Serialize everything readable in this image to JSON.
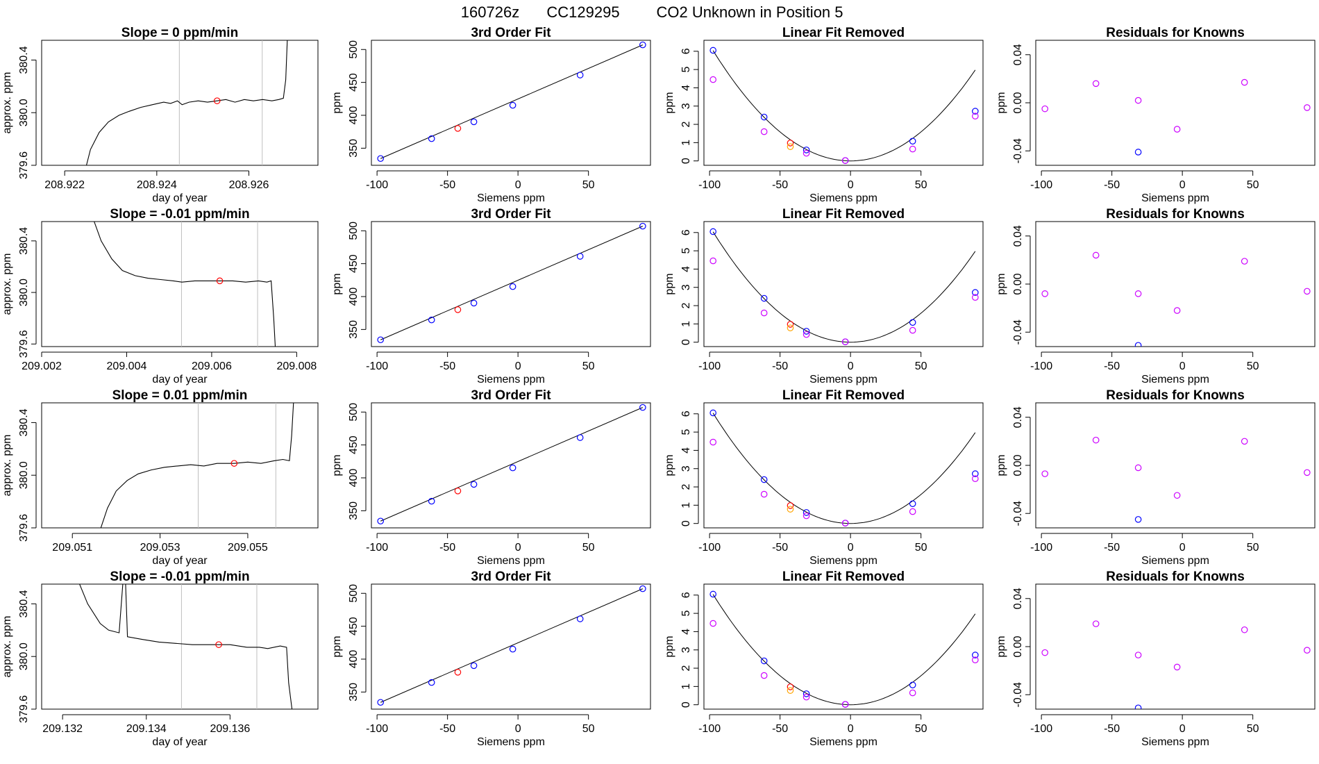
{
  "suptitle": {
    "run": "160726z",
    "cylinder": "CC129295",
    "description": "CO2 Unknown in Position  5"
  },
  "colors": {
    "trace": "#000000",
    "marker_selected": "#ff0000",
    "standards": "#0000ff",
    "linear_removed": "#cc00ff",
    "unknown": "#ffa500",
    "window_lines": "#bebebe"
  },
  "chart_data": [
    {
      "type": "line",
      "title": "Slope =  0  ppm/min",
      "xlabel": "day of year",
      "ylabel": "approx. ppm",
      "xlim": [
        208.9215,
        208.9275
      ],
      "ylim": [
        379.6,
        380.55
      ],
      "xticks": [
        208.922,
        208.924,
        208.926
      ],
      "xticklabels": [
        "208.922",
        "208.924",
        "208.926"
      ],
      "yticks": [
        379.6,
        380.0,
        380.4
      ],
      "yticklabels": [
        "379.6",
        "380.0",
        "380.4"
      ],
      "window": [
        208.92449,
        208.92629
      ],
      "marker": {
        "x": 208.92531,
        "y": 380.09
      },
      "trace": [
        [
          208.9224,
          379.5
        ],
        [
          208.92256,
          379.72
        ],
        [
          208.92275,
          379.85
        ],
        [
          208.92295,
          379.93
        ],
        [
          208.92318,
          379.98
        ],
        [
          208.9234,
          380.01
        ],
        [
          208.92365,
          380.04
        ],
        [
          208.9239,
          380.06
        ],
        [
          208.92415,
          380.08
        ],
        [
          208.9243,
          380.07
        ],
        [
          208.92445,
          380.09
        ],
        [
          208.92455,
          380.06
        ],
        [
          208.9247,
          380.08
        ],
        [
          208.9249,
          380.09
        ],
        [
          208.9251,
          380.08
        ],
        [
          208.92531,
          380.09
        ],
        [
          208.9255,
          380.1
        ],
        [
          208.9257,
          380.08
        ],
        [
          208.9259,
          380.1
        ],
        [
          208.9261,
          380.09
        ],
        [
          208.9263,
          380.1
        ],
        [
          208.9265,
          380.09
        ],
        [
          208.92665,
          380.1
        ],
        [
          208.92675,
          380.11
        ],
        [
          208.9268,
          380.25
        ],
        [
          208.92684,
          380.6
        ]
      ]
    },
    {
      "type": "line",
      "title": "Slope =  -0.01  ppm/min",
      "xlabel": "day of year",
      "ylabel": "approx. ppm",
      "xlim": [
        209.002,
        209.0085
      ],
      "ylim": [
        379.58,
        380.55
      ],
      "xticks": [
        209.002,
        209.004,
        209.006,
        209.008
      ],
      "xticklabels": [
        "209.002",
        "209.004",
        "209.006",
        "209.008"
      ],
      "yticks": [
        379.6,
        380.0,
        380.4
      ],
      "yticklabels": [
        "379.6",
        "380.0",
        "380.4"
      ],
      "window": [
        209.00529,
        209.00708
      ],
      "marker": {
        "x": 209.00619,
        "y": 380.09
      },
      "trace": [
        [
          209.00318,
          380.6
        ],
        [
          209.0034,
          380.4
        ],
        [
          209.00365,
          380.26
        ],
        [
          209.0039,
          380.17
        ],
        [
          209.0042,
          380.13
        ],
        [
          209.0045,
          380.11
        ],
        [
          209.0048,
          380.1
        ],
        [
          209.0051,
          380.09
        ],
        [
          209.0053,
          380.08
        ],
        [
          209.0056,
          380.09
        ],
        [
          209.0059,
          380.09
        ],
        [
          209.00619,
          380.09
        ],
        [
          209.0065,
          380.09
        ],
        [
          209.0068,
          380.08
        ],
        [
          209.0071,
          380.09
        ],
        [
          209.0073,
          380.08
        ],
        [
          209.0074,
          380.09
        ],
        [
          209.00746,
          379.8
        ],
        [
          209.0075,
          379.55
        ]
      ]
    },
    {
      "type": "line",
      "title": "Slope =  0.01  ppm/min",
      "xlabel": "day of year",
      "ylabel": "approx. ppm",
      "xlim": [
        209.0503,
        209.0566
      ],
      "ylim": [
        379.6,
        380.55
      ],
      "xticks": [
        209.051,
        209.053,
        209.055
      ],
      "xticklabels": [
        "209.051",
        "209.053",
        "209.055"
      ],
      "yticks": [
        379.6,
        380.0,
        380.4
      ],
      "yticklabels": [
        "379.6",
        "380.0",
        "380.4"
      ],
      "window": [
        209.05387,
        209.05564
      ],
      "marker": {
        "x": 209.05469,
        "y": 380.09
      },
      "trace": [
        [
          209.0516,
          379.55
        ],
        [
          209.0518,
          379.75
        ],
        [
          209.052,
          379.88
        ],
        [
          209.05225,
          379.96
        ],
        [
          209.0525,
          380.01
        ],
        [
          209.0528,
          380.04
        ],
        [
          209.0531,
          380.06
        ],
        [
          209.0534,
          380.07
        ],
        [
          209.0537,
          380.08
        ],
        [
          209.054,
          380.07
        ],
        [
          209.0543,
          380.09
        ],
        [
          209.05469,
          380.09
        ],
        [
          209.055,
          380.1
        ],
        [
          209.0553,
          380.09
        ],
        [
          209.0556,
          380.11
        ],
        [
          209.0558,
          380.12
        ],
        [
          209.05595,
          380.11
        ],
        [
          209.056,
          380.3
        ],
        [
          209.05605,
          380.6
        ]
      ]
    },
    {
      "type": "line",
      "title": "Slope =  -0.01  ppm/min",
      "xlabel": "day of year",
      "ylabel": "approx. ppm",
      "xlim": [
        209.1315,
        209.1381
      ],
      "ylim": [
        379.6,
        380.55
      ],
      "xticks": [
        209.132,
        209.134,
        209.136
      ],
      "xticklabels": [
        "209.132",
        "209.134",
        "209.136"
      ],
      "yticks": [
        379.6,
        380.0,
        380.4
      ],
      "yticklabels": [
        "379.6",
        "380.0",
        "380.4"
      ],
      "window": [
        209.13484,
        209.13664
      ],
      "marker": {
        "x": 209.13573,
        "y": 380.09
      },
      "trace": [
        [
          209.13234,
          380.6
        ],
        [
          209.1326,
          380.4
        ],
        [
          209.1329,
          380.25
        ],
        [
          209.1331,
          380.2
        ],
        [
          209.13335,
          380.18
        ],
        [
          209.13345,
          380.6
        ],
        [
          209.1335,
          380.6
        ],
        [
          209.13355,
          380.15
        ],
        [
          209.1339,
          380.13
        ],
        [
          209.1343,
          380.11
        ],
        [
          209.1347,
          380.1
        ],
        [
          209.1351,
          380.09
        ],
        [
          209.1355,
          380.09
        ],
        [
          209.13573,
          380.09
        ],
        [
          209.136,
          380.09
        ],
        [
          209.1364,
          380.07
        ],
        [
          209.1367,
          380.07
        ],
        [
          209.1369,
          380.06
        ],
        [
          209.1372,
          380.08
        ],
        [
          209.13735,
          380.07
        ],
        [
          209.1374,
          379.8
        ],
        [
          209.1375,
          379.55
        ]
      ]
    },
    {
      "type": "scatter",
      "title": "3rd Order Fit",
      "xlabel": "Siemens ppm",
      "ylabel": "ppm",
      "xlim": [
        -104,
        94
      ],
      "ylim": [
        324,
        514
      ],
      "xticks": [
        -100,
        -50,
        0,
        50
      ],
      "xticklabels": [
        "-100",
        "-50",
        "0",
        "50"
      ],
      "yticks": [
        350,
        400,
        450,
        500
      ],
      "yticklabels": [
        "350",
        "400",
        "450",
        "500"
      ],
      "fit_line": [
        [
          -97.5,
          334.3
        ],
        [
          88.5,
          507.0
        ]
      ],
      "standards": [
        [
          -97.5,
          334.3
        ],
        [
          -61.3,
          364.5
        ],
        [
          -31.3,
          390.1
        ],
        [
          -3.7,
          415.2
        ],
        [
          44.1,
          461.2
        ],
        [
          88.5,
          507.0
        ]
      ],
      "unknown": [
        [
          -42.7,
          380.1
        ]
      ]
    },
    {
      "type": "scatter",
      "title": "Linear Fit Removed",
      "xlabel": "Siemens ppm",
      "ylabel": "ppm",
      "xlim": [
        -104,
        94
      ],
      "ylim": [
        -0.24,
        6.6
      ],
      "xticks": [
        -100,
        -50,
        0,
        50
      ],
      "xticklabels": [
        "-100",
        "-50",
        "0",
        "50"
      ],
      "yticks": [
        0,
        1,
        2,
        3,
        4,
        5,
        6
      ],
      "yticklabels": [
        "0",
        "1",
        "2",
        "3",
        "4",
        "5",
        "6"
      ],
      "curve_coef": 0.000635,
      "curve_range": [
        -97.5,
        88.5
      ],
      "standards": [
        [
          -97.5,
          6.05
        ],
        [
          -61.3,
          2.4
        ],
        [
          -31.3,
          0.6
        ],
        [
          -3.7,
          0.02
        ],
        [
          44.1,
          1.08
        ],
        [
          88.5,
          2.72
        ]
      ],
      "linear_removed": [
        [
          -97.5,
          4.45
        ],
        [
          -61.3,
          1.6
        ],
        [
          -31.3,
          0.42
        ],
        [
          -3.7,
          0.02
        ],
        [
          44.1,
          0.65
        ],
        [
          88.5,
          2.45
        ]
      ],
      "unknown_pair": [
        [
          -42.7,
          0.98
        ],
        [
          -42.7,
          0.78
        ]
      ]
    },
    {
      "type": "scatter",
      "title": "Residuals for Knowns",
      "xlabel": "Siemens ppm",
      "ylabel": "ppm",
      "xlim": [
        -104,
        94
      ],
      "ylim": [
        -0.052,
        0.052
      ],
      "xticks": [
        -100,
        -50,
        0,
        50
      ],
      "xticklabels": [
        "-100",
        "-50",
        "0",
        "50"
      ],
      "yticks": [
        -0.04,
        0.0,
        0.04
      ],
      "yticklabels": [
        "-0.04",
        "0.00",
        "0.04"
      ],
      "rows": [
        {
          "points": [
            [
              -97.5,
              -0.005
            ],
            [
              -61.3,
              0.016
            ],
            [
              -31.3,
              0.002
            ],
            [
              -3.7,
              -0.022
            ],
            [
              44.1,
              0.017
            ],
            [
              88.5,
              -0.004
            ]
          ],
          "blue": [
            -31.3,
            -0.041
          ]
        },
        {
          "points": [
            [
              -97.5,
              -0.008
            ],
            [
              -61.3,
              0.024
            ],
            [
              -31.3,
              -0.008
            ],
            [
              -3.7,
              -0.022
            ],
            [
              44.1,
              0.019
            ],
            [
              88.5,
              -0.006
            ]
          ],
          "blue": [
            -31.3,
            -0.051
          ]
        },
        {
          "points": [
            [
              -97.5,
              -0.007
            ],
            [
              -61.3,
              0.021
            ],
            [
              -31.3,
              -0.002
            ],
            [
              -3.7,
              -0.025
            ],
            [
              44.1,
              0.02
            ],
            [
              88.5,
              -0.006
            ]
          ],
          "blue": [
            -31.3,
            -0.045
          ]
        },
        {
          "points": [
            [
              -97.5,
              -0.005
            ],
            [
              -61.3,
              0.019
            ],
            [
              -31.3,
              -0.007
            ],
            [
              -3.7,
              -0.017
            ],
            [
              44.1,
              0.014
            ],
            [
              88.5,
              -0.003
            ]
          ],
          "blue": [
            -31.3,
            -0.051
          ]
        }
      ]
    }
  ]
}
